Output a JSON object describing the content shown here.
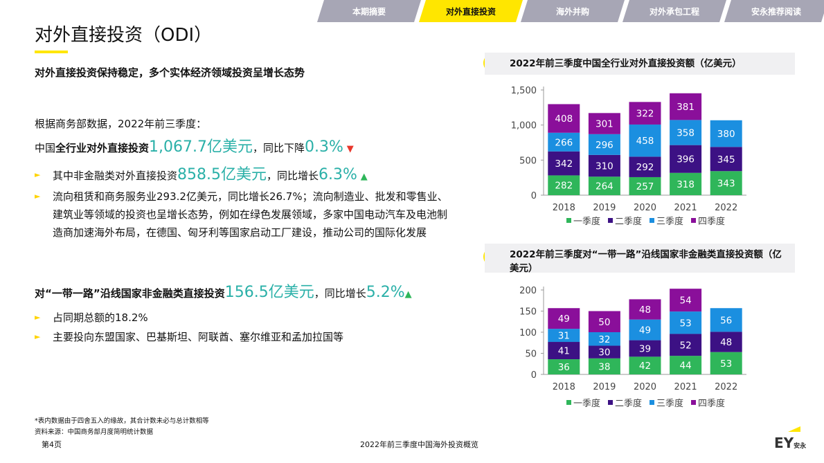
{
  "tabs": [
    {
      "label": "本期摘要",
      "active": false
    },
    {
      "label": "对外直接投资",
      "active": true
    },
    {
      "label": "海外并购",
      "active": false
    },
    {
      "label": "对外承包工程",
      "active": false
    },
    {
      "label": "安永推荐阅读",
      "active": false
    }
  ],
  "title": "对外直接投资（ODI）",
  "subtitle": "对外直接投资保持稳定，多个实体经济领域投资呈增长态势",
  "intro": "根据商务部数据，2022年前三季度：",
  "line1": {
    "prefix": "中国",
    "bold": "全行业对外直接投资",
    "value": "1,067.7亿美元",
    "mid": "，同比下降",
    "pct": "0.3%",
    "arrow": "▼"
  },
  "bullet1": {
    "prefix": "其中非金融类对外直接投资",
    "value": "858.5亿美元",
    "mid": "，同比增长",
    "pct": "6.3%",
    "arrow": "▲"
  },
  "bullet2": "流向租赁和商务服务业293.2亿美元，同比增长26.7%；流向制造业、批发和零售业、建筑业等领域的投资也呈增长态势，例如在绿色发展领域，多家中国电动汽车及电池制造商加速海外布局，在德国、匈牙利等国家启动工厂建设，推动公司的国际化发展",
  "line2": {
    "bold": "对“一带一路”沿线国家非金融类直接投资",
    "value": "156.5亿美元",
    "mid": "，同比增长",
    "pct": "5.2%",
    "arrow": "▲"
  },
  "bullet3": "占同期总额的18.2%",
  "bullet4": "主要投向东盟国家、巴基斯坦、阿联酋、塞尔维亚和孟加拉国等",
  "footnote": "*表内数据由于四舍五入的缘故，其合计数未必与总计数相等",
  "source": "资料来源：中国商务部月度简明统计数据",
  "page": "第4页",
  "footer_title": "2022年前三季度中国海外投资概览",
  "logo": "EY安永",
  "colors": {
    "q1": "#2fb65a",
    "q2": "#3c1184",
    "q3": "#1b8fe0",
    "q4": "#8a0f9a",
    "accent": "#2ab0a8",
    "yellow": "#ffe600"
  },
  "chart_data": [
    {
      "type": "bar",
      "stacked": true,
      "title": "2022年前三季度中国全行业对外直接投资额（亿美元）",
      "categories": [
        "2018",
        "2019",
        "2020",
        "2021",
        "2022"
      ],
      "ylim": [
        0,
        1500
      ],
      "yticks": [
        "0",
        "500",
        "1,000",
        "1,500"
      ],
      "ytick_values": [
        0,
        500,
        1000,
        1500
      ],
      "series": [
        {
          "name": "一季度",
          "values": [
            282,
            264,
            257,
            318,
            343
          ]
        },
        {
          "name": "二季度",
          "values": [
            342,
            310,
            292,
            396,
            345
          ]
        },
        {
          "name": "三季度",
          "values": [
            266,
            296,
            458,
            358,
            380
          ]
        },
        {
          "name": "四季度",
          "values": [
            408,
            301,
            322,
            381,
            null
          ]
        }
      ],
      "legend": "bottom"
    },
    {
      "type": "bar",
      "stacked": true,
      "title": "2022年前三季度对“一带一路”沿线国家非金融类直接投资额（亿美元）",
      "categories": [
        "2018",
        "2019",
        "2020",
        "2021",
        "2022"
      ],
      "ylim": [
        0,
        200
      ],
      "yticks": [
        "0",
        "50",
        "100",
        "150",
        "200"
      ],
      "ytick_values": [
        0,
        50,
        100,
        150,
        200
      ],
      "series": [
        {
          "name": "一季度",
          "values": [
            36,
            38,
            42,
            44,
            53
          ]
        },
        {
          "name": "二季度",
          "values": [
            41,
            30,
            39,
            52,
            48
          ]
        },
        {
          "name": "三季度",
          "values": [
            31,
            32,
            49,
            53,
            56
          ]
        },
        {
          "name": "四季度",
          "values": [
            49,
            50,
            48,
            54,
            null
          ]
        }
      ],
      "legend": "bottom"
    }
  ]
}
